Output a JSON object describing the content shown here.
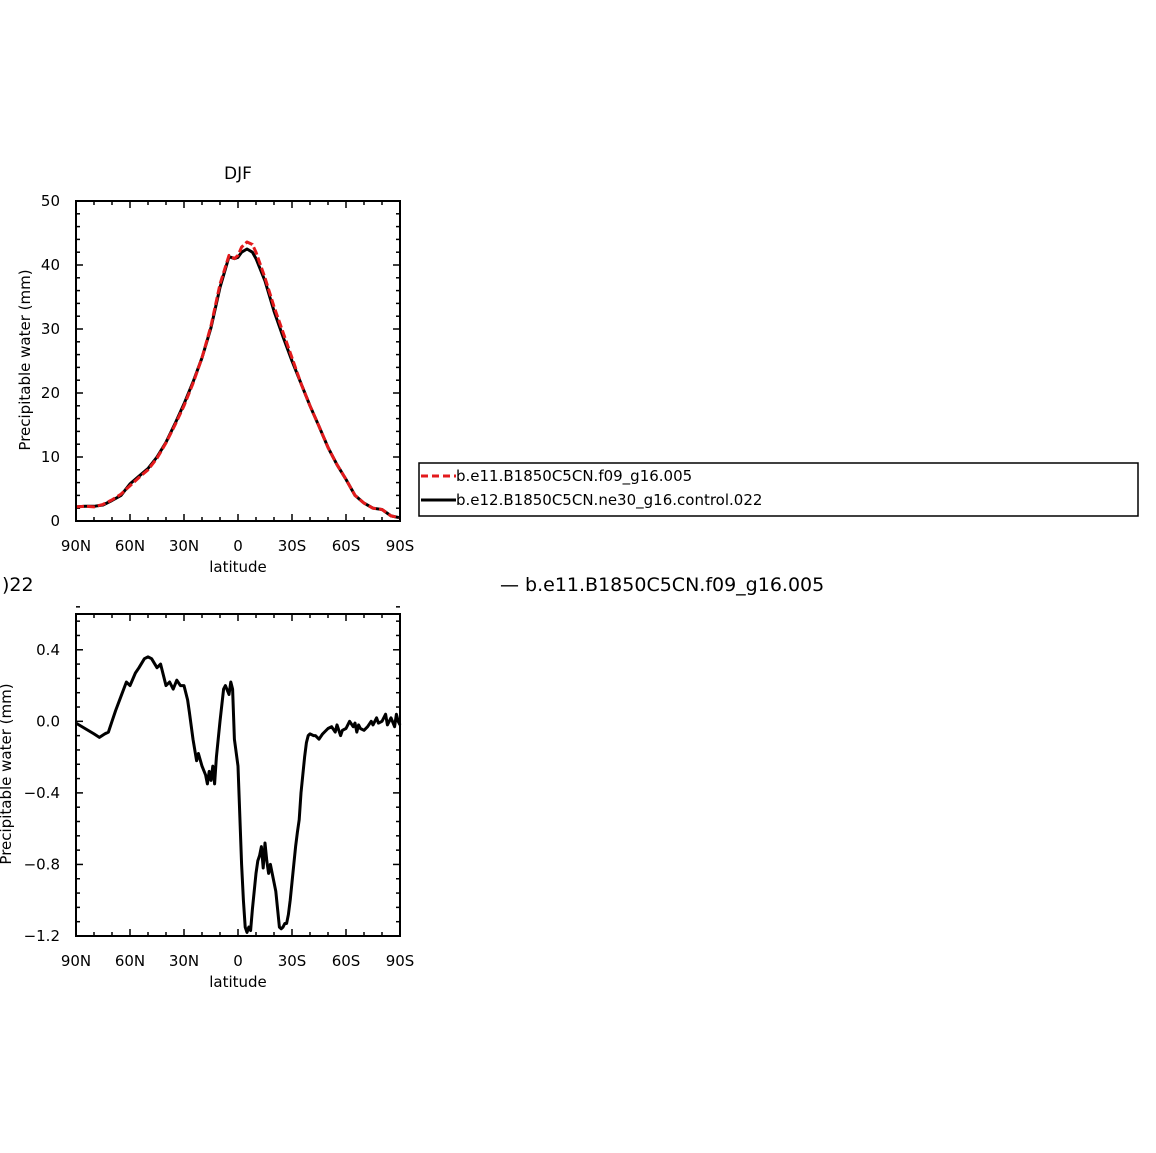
{
  "chart_data": [
    {
      "type": "line",
      "title": "DJF",
      "xlabel": "latitude",
      "ylabel": "Precipitable water (mm)",
      "xlim": [
        -90,
        90
      ],
      "ylim": [
        0,
        50
      ],
      "x_tick_labels": [
        "90N",
        "60N",
        "30N",
        "0",
        "30S",
        "60S",
        "90S"
      ],
      "y_tick_labels": [
        "0",
        "10",
        "20",
        "30",
        "40",
        "50"
      ],
      "grid": false,
      "legend_placement": "right, outside plot",
      "series": [
        {
          "name": "b.e11.B1850C5CN.f09_g16.005",
          "color": "#e31a1c",
          "dash": "dashed",
          "x": [
            -90,
            -85,
            -80,
            -75,
            -70,
            -65,
            -60,
            -55,
            -50,
            -45,
            -40,
            -35,
            -30,
            -25,
            -20,
            -15,
            -10,
            -5,
            -2,
            0,
            2,
            5,
            8,
            10,
            15,
            20,
            25,
            30,
            35,
            40,
            45,
            50,
            55,
            60,
            65,
            70,
            75,
            80,
            85,
            90
          ],
          "y": [
            2.2,
            2.3,
            2.2,
            2.6,
            3.3,
            4.2,
            5.5,
            6.8,
            8.0,
            9.8,
            12.2,
            15.0,
            18.0,
            21.5,
            25.5,
            30.5,
            37.0,
            41.5,
            41.0,
            41.5,
            42.8,
            43.6,
            43.2,
            42.0,
            38.0,
            33.5,
            29.5,
            25.5,
            21.5,
            18.0,
            14.8,
            11.5,
            8.8,
            6.5,
            4.0,
            2.8,
            2.0,
            1.8,
            0.8,
            0.5
          ]
        },
        {
          "name": "b.e12.B1850C5CN.ne30_g16.control.022",
          "color": "#000000",
          "dash": "solid",
          "x": [
            -90,
            -85,
            -80,
            -75,
            -70,
            -65,
            -60,
            -55,
            -50,
            -45,
            -40,
            -35,
            -30,
            -25,
            -20,
            -15,
            -10,
            -5,
            -2,
            0,
            2,
            5,
            8,
            10,
            15,
            20,
            25,
            30,
            35,
            40,
            45,
            50,
            55,
            60,
            65,
            70,
            75,
            80,
            85,
            90
          ],
          "y": [
            2.2,
            2.3,
            2.3,
            2.5,
            3.2,
            4.0,
            5.8,
            7.0,
            8.2,
            10.0,
            12.3,
            15.2,
            18.3,
            21.7,
            25.5,
            30.2,
            36.5,
            41.3,
            41.0,
            41.2,
            42.0,
            42.5,
            42.0,
            41.0,
            37.5,
            32.8,
            28.8,
            25.0,
            21.5,
            18.0,
            14.8,
            11.5,
            8.8,
            6.5,
            4.0,
            2.8,
            2.0,
            1.8,
            0.8,
            0.5
          ]
        }
      ]
    },
    {
      "type": "line",
      "title": ")22",
      "subtitle_right": "b.e11.B1850C5CN.f09_g16.005",
      "xlabel": "latitude",
      "ylabel": "Precipitable water (mm)",
      "xlim": [
        -90,
        90
      ],
      "ylim": [
        -1.2,
        0.6
      ],
      "x_tick_labels": [
        "90N",
        "60N",
        "30N",
        "0",
        "30S",
        "60S",
        "90S"
      ],
      "y_tick_labels": [
        "-1.2",
        "-0.8",
        "-0.4",
        "0.0",
        "0.4"
      ],
      "grid": false,
      "series": [
        {
          "color": "#000000",
          "dash": "solid",
          "x": [
            -90,
            -85,
            -80,
            -77,
            -74,
            -72,
            -70,
            -68,
            -65,
            -62,
            -60,
            -57,
            -55,
            -52,
            -50,
            -48,
            -45,
            -43,
            -40,
            -38,
            -36,
            -34,
            -32,
            -30,
            -28,
            -27,
            -25,
            -23,
            -22,
            -20,
            -18,
            -17,
            -16,
            -15,
            -14,
            -13,
            -12,
            -11,
            -10,
            -8,
            -7,
            -5,
            -4,
            -3,
            -2,
            0,
            2,
            3,
            4,
            5,
            6,
            7,
            8,
            9,
            10,
            11,
            12,
            13,
            14,
            15,
            16,
            17,
            18,
            19,
            20,
            21,
            22,
            23,
            24,
            25,
            26,
            27,
            28,
            29,
            30,
            31,
            32,
            33,
            34,
            35,
            36,
            37,
            38,
            39,
            40,
            42,
            43,
            45,
            47,
            50,
            52,
            54,
            55,
            57,
            58,
            60,
            62,
            64,
            65,
            66,
            67,
            68,
            70,
            72,
            74,
            75,
            77,
            78,
            80,
            82,
            83,
            85,
            87,
            88,
            89,
            90
          ],
          "y": [
            -0.01,
            -0.04,
            -0.07,
            -0.09,
            -0.07,
            -0.06,
            0.0,
            0.06,
            0.14,
            0.22,
            0.2,
            0.27,
            0.3,
            0.35,
            0.36,
            0.35,
            0.3,
            0.32,
            0.2,
            0.22,
            0.18,
            0.23,
            0.2,
            0.2,
            0.12,
            0.05,
            -0.1,
            -0.22,
            -0.18,
            -0.25,
            -0.3,
            -0.35,
            -0.28,
            -0.33,
            -0.25,
            -0.35,
            -0.2,
            -0.1,
            0.0,
            0.18,
            0.2,
            0.15,
            0.22,
            0.18,
            -0.1,
            -0.25,
            -0.8,
            -1.0,
            -1.15,
            -1.18,
            -1.15,
            -1.17,
            -1.05,
            -0.95,
            -0.85,
            -0.78,
            -0.75,
            -0.7,
            -0.82,
            -0.68,
            -0.78,
            -0.85,
            -0.8,
            -0.85,
            -0.9,
            -0.95,
            -1.05,
            -1.15,
            -1.16,
            -1.15,
            -1.13,
            -1.13,
            -1.08,
            -1.0,
            -0.9,
            -0.8,
            -0.7,
            -0.62,
            -0.55,
            -0.4,
            -0.3,
            -0.2,
            -0.12,
            -0.08,
            -0.07,
            -0.08,
            -0.08,
            -0.1,
            -0.07,
            -0.04,
            -0.03,
            -0.06,
            -0.02,
            -0.08,
            -0.05,
            -0.04,
            0.0,
            -0.03,
            -0.01,
            -0.06,
            -0.02,
            -0.04,
            -0.05,
            -0.03,
            0.0,
            -0.02,
            0.02,
            -0.01,
            0.0,
            0.04,
            -0.02,
            0.02,
            -0.03,
            0.04,
            0.0,
            -0.02
          ]
        }
      ]
    }
  ],
  "legend": {
    "entries": [
      {
        "label": "b.e11.B1850C5CN.f09_g16.005",
        "color": "#e31a1c",
        "dash": "dashed"
      },
      {
        "label": "b.e12.B1850C5CN.ne30_g16.control.022",
        "color": "#000000",
        "dash": "solid"
      }
    ]
  }
}
